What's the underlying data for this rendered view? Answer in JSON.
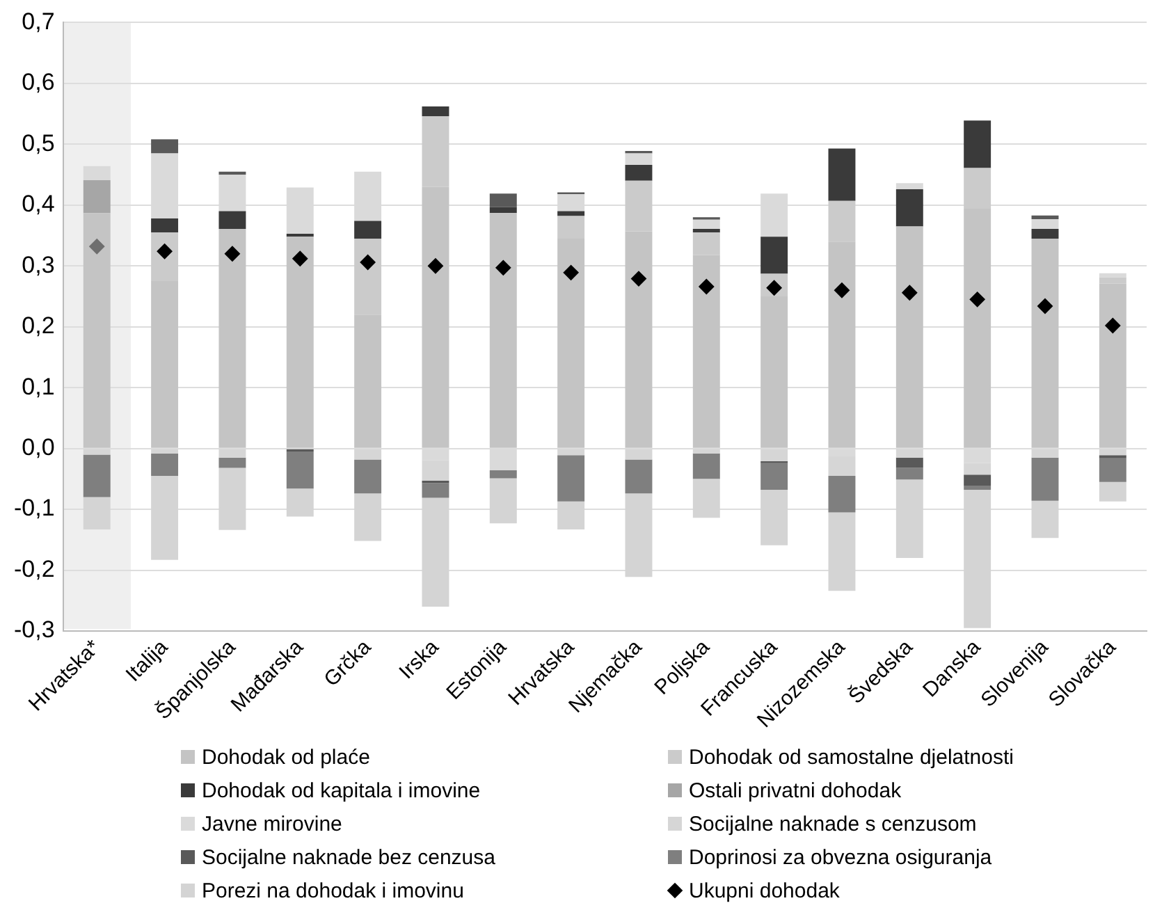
{
  "chart_data": {
    "type": "bar",
    "stacked": true,
    "categories": [
      "Hrvatska*",
      "Italija",
      "Španjolska",
      "Mađarska",
      "Grčka",
      "Irska",
      "Estonija",
      "Hrvatska",
      "Njemačka",
      "Poljska",
      "Francuska",
      "Nizozemska",
      "Švedska",
      "Danska",
      "Slovenija",
      "Slovačka"
    ],
    "ylim": [
      -0.3,
      0.7
    ],
    "yticks": [
      {
        "value": -0.3,
        "label": "-0,3"
      },
      {
        "value": -0.2,
        "label": "-0,2"
      },
      {
        "value": -0.1,
        "label": "-0,1"
      },
      {
        "value": 0,
        "label": "0,0"
      },
      {
        "value": 0.1,
        "label": "0,1"
      },
      {
        "value": 0.2,
        "label": "0,2"
      },
      {
        "value": 0.3,
        "label": "0,3"
      },
      {
        "value": 0.4,
        "label": "0,4"
      },
      {
        "value": 0.5,
        "label": "0,5"
      },
      {
        "value": 0.6,
        "label": "0,6"
      },
      {
        "value": 0.7,
        "label": "0,7"
      }
    ],
    "grid": "y",
    "legend": "bottom",
    "series": [
      {
        "name": "Dohodak od plaće",
        "color": "#c4c4c4",
        "values": [
          0.387,
          0.275,
          0.361,
          0.348,
          0.22,
          0.43,
          0.387,
          0.345,
          0.357,
          0.318,
          0.25,
          0.34,
          0.365,
          0.394,
          0.345,
          0.271
        ]
      },
      {
        "name": "Dohodak od samostalne djelatnosti",
        "color": "#cbcbcb",
        "values": [
          null,
          0.08,
          null,
          null,
          0.125,
          0.116,
          null,
          0.037,
          0.083,
          0.037,
          0.037,
          0.067,
          null,
          0.067,
          null,
          0.01
        ]
      },
      {
        "name": "Dohodak od kapitala i imovine",
        "color": "#3a3a3a",
        "values": [
          null,
          0.023,
          0.029,
          0.005,
          0.029,
          0.016,
          0.01,
          0.008,
          0.026,
          0.006,
          0.061,
          0.086,
          0.061,
          0.078,
          0.016,
          null
        ]
      },
      {
        "name": "Ostali privatni dohodak",
        "color": "#a6a6a6",
        "values": [
          0.054,
          null,
          null,
          null,
          null,
          null,
          null,
          null,
          null,
          null,
          null,
          null,
          null,
          null,
          null,
          null
        ]
      },
      {
        "name": "Javne mirovine",
        "color": "#dadada",
        "values": [
          0.023,
          0.107,
          0.06,
          0.076,
          0.081,
          -0.019,
          -0.036,
          0.028,
          0.019,
          0.015,
          0.071,
          -0.013,
          0.01,
          -0.024,
          0.016,
          0.007
        ]
      },
      {
        "name": "Socijalne naknade s cenzusom",
        "color": "#d6d6d6",
        "values": [
          -0.01,
          -0.008,
          -0.015,
          null,
          -0.018,
          -0.034,
          null,
          -0.011,
          -0.018,
          -0.008,
          -0.021,
          -0.032,
          -0.015,
          -0.019,
          -0.015,
          -0.011
        ]
      },
      {
        "name": "Socijalne naknade bez cenzusa",
        "color": "#595959",
        "values": [
          null,
          0.023,
          0.005,
          -0.005,
          null,
          -0.004,
          0.022,
          0.003,
          0.004,
          0.004,
          -0.003,
          null,
          -0.017,
          -0.018,
          0.006,
          -0.005
        ]
      },
      {
        "name": "Doprinosi za obvezna osiguranja",
        "color": "#7f7f7f",
        "values": [
          -0.07,
          -0.037,
          -0.017,
          -0.061,
          -0.056,
          -0.024,
          -0.013,
          -0.076,
          -0.056,
          -0.042,
          -0.044,
          -0.06,
          -0.019,
          -0.007,
          -0.071,
          -0.039
        ]
      },
      {
        "name": "Porezi na dohodak i imovinu",
        "color": "#d4d4d4",
        "values": [
          -0.053,
          -0.138,
          -0.102,
          -0.046,
          -0.078,
          -0.179,
          -0.074,
          -0.046,
          -0.137,
          -0.064,
          -0.091,
          -0.129,
          -0.129,
          -0.227,
          -0.061,
          -0.032
        ]
      },
      {
        "name": "Ukupni dohodak",
        "type": "scatter",
        "marker": "diamond",
        "color": "#000000",
        "colors": [
          "#6e6e6e",
          "#000000",
          "#000000",
          "#000000",
          "#000000",
          "#000000",
          "#000000",
          "#000000",
          "#000000",
          "#000000",
          "#000000",
          "#000000",
          "#000000",
          "#000000",
          "#000000",
          "#000000"
        ],
        "x": [
          "Hrvatska*",
          "Italija",
          "Španjolska",
          "Mađarska",
          "Grčka",
          "Irska",
          "Estonija",
          "Hrvatska",
          "Njemačka",
          "Poljska",
          "Francuska",
          "Nizozemska",
          "Švedska",
          "Danska",
          "Slovenija",
          "Slovačka"
        ],
        "values": [
          0.332,
          0.324,
          0.32,
          0.312,
          0.306,
          0.3,
          0.297,
          0.289,
          0.279,
          0.266,
          0.264,
          0.26,
          0.256,
          0.245,
          0.234,
          0.202
        ]
      }
    ]
  }
}
